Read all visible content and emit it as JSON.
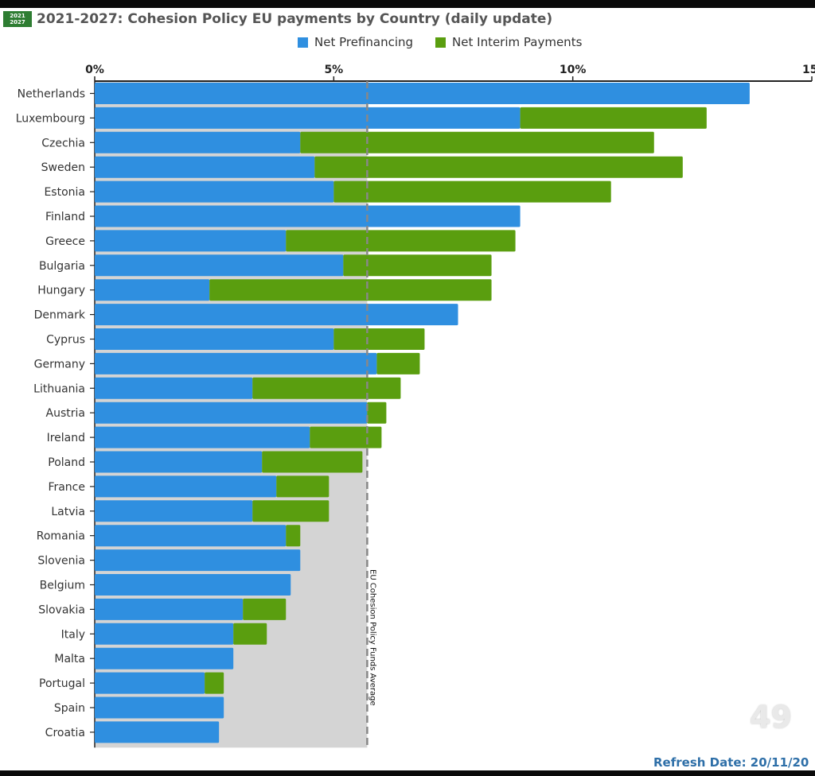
{
  "header": {
    "badge_line1": "2021",
    "badge_line2": "2027",
    "title": "2021-2027: Cohesion Policy EU payments by Country (daily update)"
  },
  "legend": {
    "items": [
      {
        "label": "Net Prefinancing",
        "color": "#2f8fe0"
      },
      {
        "label": "Net Interim Payments",
        "color": "#5a9e0f"
      }
    ]
  },
  "footer": {
    "refresh": "Refresh Date: 20/11/20",
    "page_number": "49"
  },
  "chart_data": {
    "type": "bar",
    "orientation": "horizontal",
    "stacked": true,
    "xlim": [
      0,
      15
    ],
    "xticks": [
      0,
      5,
      10,
      15
    ],
    "xtick_labels": [
      "0%",
      "5%",
      "10%",
      "15"
    ],
    "categories": [
      "Netherlands",
      "Luxembourg",
      "Czechia",
      "Sweden",
      "Estonia",
      "Finland",
      "Greece",
      "Bulgaria",
      "Hungary",
      "Denmark",
      "Cyprus",
      "Germany",
      "Lithuania",
      "Austria",
      "Ireland",
      "Poland",
      "France",
      "Latvia",
      "Romania",
      "Slovenia",
      "Belgium",
      "Slovakia",
      "Italy",
      "Malta",
      "Portugal",
      "Spain",
      "Croatia"
    ],
    "series": [
      {
        "name": "Net Prefinancing",
        "color": "#2f8fe0",
        "values": [
          13.7,
          8.9,
          4.3,
          4.6,
          5.0,
          8.9,
          4.0,
          5.2,
          2.4,
          7.6,
          5.0,
          5.9,
          3.3,
          5.7,
          4.5,
          3.5,
          3.8,
          3.3,
          4.0,
          4.3,
          4.1,
          3.1,
          2.9,
          2.9,
          2.3,
          2.7,
          2.6
        ]
      },
      {
        "name": "Net Interim Payments",
        "color": "#5a9e0f",
        "values": [
          0.0,
          3.9,
          7.4,
          7.7,
          5.8,
          0.0,
          4.8,
          3.1,
          5.9,
          0.0,
          1.9,
          0.9,
          3.1,
          0.4,
          1.5,
          2.1,
          1.1,
          1.6,
          0.3,
          0.0,
          0.0,
          0.9,
          0.7,
          0.0,
          0.4,
          0.0,
          0.0
        ]
      }
    ],
    "reference_line": {
      "label": "EU Cohesion Policy Funds Average",
      "value": 5.7,
      "style": "dashed"
    },
    "reference_fill_color": "#d4d4d4"
  }
}
